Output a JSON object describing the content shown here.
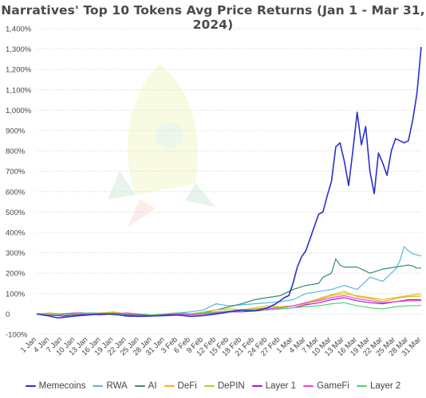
{
  "chart_data": {
    "type": "line",
    "title": "Narratives' Top 10 Tokens Avg Price Returns (Jan 1 - Mar 31, 2024)",
    "xlabel": "",
    "ylabel": "",
    "ylim": [
      -100,
      1400
    ],
    "yticks": [
      -100,
      0,
      100,
      200,
      300,
      400,
      500,
      600,
      700,
      800,
      900,
      1000,
      1100,
      1200,
      1300,
      1400
    ],
    "ytick_labels": [
      "-100%",
      "0",
      "100%",
      "200%",
      "300%",
      "400%",
      "500%",
      "600%",
      "700%",
      "800%",
      "900%",
      "1,000%",
      "1,100%",
      "1,200%",
      "1,300%",
      "1,400%"
    ],
    "grid": true,
    "legend_position": "bottom",
    "x_tick_labels": [
      "1 Jan",
      "4 Jan",
      "7 Jan",
      "10 Jan",
      "13 Jan",
      "16 Jan",
      "19 Jan",
      "22 Jan",
      "25 Jan",
      "28 Jan",
      "31 Jan",
      "3 Feb",
      "6 Feb",
      "9 Feb",
      "12 Feb",
      "15 Feb",
      "18 Feb",
      "21 Feb",
      "24 Feb",
      "27 Feb",
      "1 Mar",
      "4 Mar",
      "7 Mar",
      "10 Mar",
      "13 Mar",
      "16 Mar",
      "19 Mar",
      "22 Mar",
      "25 Mar",
      "28 Mar",
      "31 Mar"
    ],
    "x_tick_days": [
      1,
      4,
      7,
      10,
      13,
      16,
      19,
      22,
      25,
      28,
      31,
      34,
      37,
      40,
      43,
      46,
      49,
      52,
      55,
      58,
      61,
      64,
      67,
      70,
      73,
      76,
      79,
      82,
      85,
      88,
      91
    ],
    "x_range": [
      1,
      91
    ],
    "series": [
      {
        "name": "Memecoins",
        "color": "#2b2fcf",
        "x": [
          1,
          4,
          6,
          8,
          10,
          13,
          16,
          19,
          22,
          25,
          28,
          31,
          34,
          37,
          40,
          43,
          46,
          49,
          52,
          55,
          57,
          59,
          60,
          61,
          62,
          63,
          64,
          65,
          66,
          67,
          68,
          69,
          70,
          71,
          72,
          73,
          74,
          75,
          76,
          77,
          78,
          79,
          80,
          81,
          82,
          83,
          84,
          85,
          86,
          87,
          88,
          89,
          90,
          91
        ],
        "values": [
          0,
          -10,
          -20,
          -15,
          -10,
          -5,
          0,
          0,
          -10,
          -12,
          -10,
          -8,
          -5,
          -12,
          -8,
          0,
          10,
          20,
          15,
          30,
          50,
          80,
          90,
          150,
          230,
          280,
          310,
          370,
          430,
          490,
          500,
          580,
          650,
          820,
          840,
          750,
          630,
          800,
          990,
          830,
          920,
          700,
          590,
          790,
          740,
          680,
          800,
          860,
          850,
          840,
          850,
          950,
          1080,
          1310
        ]
      },
      {
        "name": "RWA",
        "color": "#5ab4e6",
        "x": [
          1,
          4,
          7,
          10,
          13,
          16,
          19,
          22,
          25,
          28,
          31,
          34,
          37,
          40,
          43,
          46,
          49,
          52,
          55,
          58,
          61,
          64,
          67,
          70,
          73,
          76,
          79,
          82,
          85,
          86,
          87,
          88,
          89,
          90,
          91
        ],
        "values": [
          0,
          -8,
          -5,
          0,
          5,
          5,
          -5,
          -5,
          -8,
          -5,
          0,
          5,
          10,
          20,
          50,
          40,
          45,
          50,
          55,
          60,
          70,
          100,
          110,
          120,
          140,
          120,
          180,
          160,
          220,
          260,
          330,
          310,
          295,
          290,
          285
        ]
      },
      {
        "name": "AI",
        "color": "#2f8f6f",
        "x": [
          1,
          4,
          7,
          10,
          13,
          16,
          19,
          22,
          25,
          28,
          31,
          34,
          37,
          40,
          43,
          46,
          49,
          52,
          55,
          58,
          61,
          64,
          67,
          68,
          69,
          70,
          71,
          72,
          73,
          76,
          79,
          82,
          85,
          88,
          89,
          90,
          91
        ],
        "values": [
          0,
          -5,
          0,
          5,
          5,
          0,
          5,
          0,
          -5,
          -5,
          0,
          5,
          0,
          5,
          20,
          35,
          50,
          70,
          80,
          90,
          120,
          140,
          150,
          180,
          190,
          200,
          270,
          240,
          230,
          230,
          200,
          220,
          230,
          240,
          235,
          225,
          225
        ]
      },
      {
        "name": "DeFi",
        "color": "#f2b324",
        "x": [
          1,
          4,
          7,
          10,
          13,
          16,
          19,
          22,
          25,
          28,
          31,
          34,
          37,
          40,
          43,
          46,
          49,
          52,
          55,
          58,
          61,
          64,
          67,
          70,
          73,
          76,
          79,
          82,
          85,
          88,
          91
        ],
        "values": [
          0,
          0,
          -5,
          0,
          5,
          0,
          5,
          0,
          -5,
          -5,
          0,
          0,
          -5,
          0,
          10,
          15,
          20,
          25,
          30,
          35,
          40,
          50,
          70,
          90,
          100,
          90,
          80,
          70,
          80,
          90,
          100
        ]
      },
      {
        "name": "DePIN",
        "color": "#c9c61d",
        "x": [
          1,
          4,
          7,
          10,
          13,
          16,
          19,
          22,
          25,
          28,
          31,
          34,
          37,
          40,
          43,
          46,
          49,
          52,
          55,
          58,
          61,
          64,
          67,
          70,
          73,
          76,
          79,
          82,
          85,
          88,
          91
        ],
        "values": [
          0,
          5,
          0,
          -5,
          0,
          5,
          10,
          0,
          -5,
          -5,
          0,
          5,
          0,
          10,
          20,
          25,
          20,
          30,
          40,
          35,
          40,
          55,
          75,
          95,
          110,
          85,
          75,
          60,
          75,
          85,
          88
        ]
      },
      {
        "name": "Layer 1",
        "color": "#b316d6",
        "x": [
          1,
          4,
          7,
          10,
          13,
          16,
          19,
          22,
          25,
          28,
          31,
          34,
          37,
          40,
          43,
          46,
          49,
          52,
          55,
          58,
          61,
          64,
          67,
          70,
          73,
          76,
          79,
          82,
          85,
          88,
          91
        ],
        "values": [
          0,
          -5,
          -10,
          -5,
          0,
          -5,
          0,
          -5,
          -5,
          -8,
          -5,
          0,
          -3,
          0,
          5,
          10,
          10,
          15,
          20,
          25,
          30,
          45,
          55,
          70,
          80,
          65,
          55,
          50,
          60,
          70,
          70
        ]
      },
      {
        "name": "GameFi",
        "color": "#ee3fdc",
        "x": [
          1,
          4,
          7,
          10,
          13,
          16,
          19,
          22,
          25,
          28,
          31,
          34,
          37,
          40,
          43,
          46,
          49,
          52,
          55,
          58,
          61,
          64,
          67,
          70,
          73,
          76,
          79,
          82,
          85,
          88,
          91
        ],
        "values": [
          0,
          -5,
          0,
          5,
          0,
          -5,
          0,
          5,
          0,
          -5,
          0,
          0,
          -5,
          0,
          5,
          10,
          15,
          20,
          25,
          30,
          40,
          55,
          65,
          80,
          90,
          75,
          65,
          55,
          60,
          65,
          65
        ]
      },
      {
        "name": "Layer 2",
        "color": "#4ed86a",
        "x": [
          1,
          4,
          7,
          10,
          13,
          16,
          19,
          22,
          25,
          28,
          31,
          34,
          37,
          40,
          43,
          46,
          49,
          52,
          55,
          58,
          61,
          64,
          67,
          70,
          73,
          76,
          79,
          82,
          85,
          88,
          91
        ],
        "values": [
          0,
          0,
          -5,
          0,
          5,
          0,
          -5,
          0,
          0,
          -5,
          0,
          5,
          0,
          5,
          10,
          15,
          15,
          20,
          20,
          25,
          30,
          35,
          40,
          50,
          55,
          40,
          30,
          25,
          35,
          40,
          42
        ]
      }
    ]
  }
}
